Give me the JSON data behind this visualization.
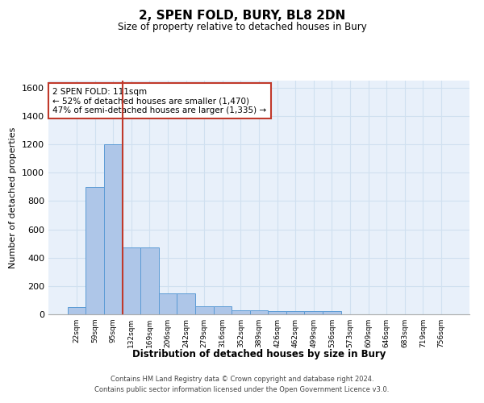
{
  "title": "2, SPEN FOLD, BURY, BL8 2DN",
  "subtitle": "Size of property relative to detached houses in Bury",
  "xlabel": "Distribution of detached houses by size in Bury",
  "ylabel": "Number of detached properties",
  "bar_labels": [
    "22sqm",
    "59sqm",
    "95sqm",
    "132sqm",
    "169sqm",
    "206sqm",
    "242sqm",
    "279sqm",
    "316sqm",
    "352sqm",
    "389sqm",
    "426sqm",
    "462sqm",
    "499sqm",
    "536sqm",
    "573sqm",
    "609sqm",
    "646sqm",
    "683sqm",
    "719sqm",
    "756sqm"
  ],
  "bar_values": [
    50,
    900,
    1200,
    470,
    470,
    150,
    150,
    55,
    55,
    30,
    30,
    20,
    20,
    20,
    20,
    0,
    0,
    0,
    0,
    0,
    0
  ],
  "bar_color": "#aec6e8",
  "bar_edge_color": "#5b9bd5",
  "grid_color": "#d0e0f0",
  "background_color": "#e8f0fa",
  "vline_color": "#c0392b",
  "vline_x_index": 2.5,
  "annotation_text": "2 SPEN FOLD: 111sqm\n← 52% of detached houses are smaller (1,470)\n47% of semi-detached houses are larger (1,335) →",
  "annotation_box_color": "#ffffff",
  "annotation_box_edge": "#c0392b",
  "ylim": [
    0,
    1650
  ],
  "yticks": [
    0,
    200,
    400,
    600,
    800,
    1000,
    1200,
    1400,
    1600
  ],
  "footer_line1": "Contains HM Land Registry data © Crown copyright and database right 2024.",
  "footer_line2": "Contains public sector information licensed under the Open Government Licence v3.0."
}
